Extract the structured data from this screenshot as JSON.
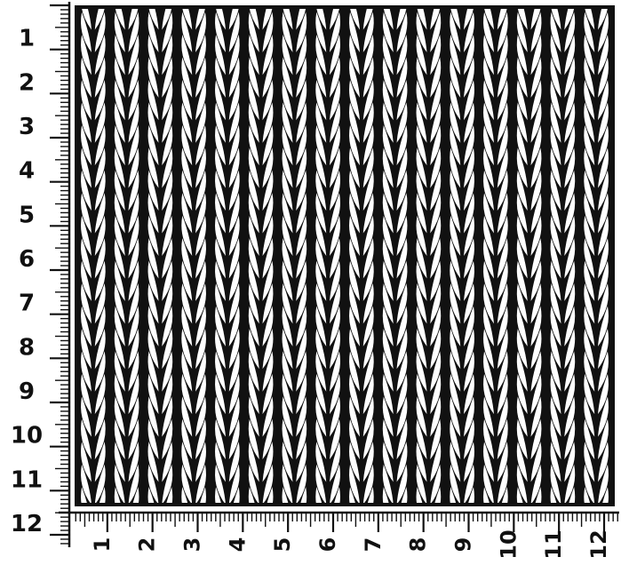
{
  "swatch": {
    "pattern": "stockinette-knit-v-stitches",
    "stitches_across": 16,
    "rows_down": 22,
    "ink_color": "#111111",
    "paper_color": "#ffffff"
  },
  "rulers": {
    "vertical": {
      "labels": [
        "1",
        "2",
        "3",
        "4",
        "5",
        "6",
        "7",
        "8",
        "9",
        "10",
        "11",
        "12"
      ]
    },
    "horizontal": {
      "labels": [
        "1",
        "2",
        "3",
        "4",
        "5",
        "6",
        "7",
        "8",
        "9",
        "10",
        "11",
        "12"
      ]
    },
    "minor_ticks_per_unit": 10
  }
}
